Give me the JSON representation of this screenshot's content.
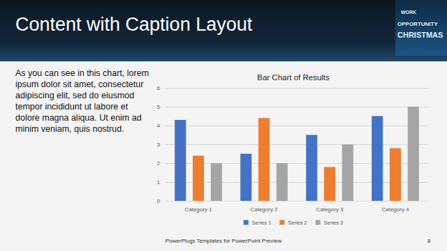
{
  "slide": {
    "title": "Content with Caption Layout",
    "caption_lines": [
      "As you can see in this chart, lorem",
      "ipsum dolor sit amet, consectetur",
      "adipiscing elit, sed do eiusmod",
      "tempor incididunt ut labore et",
      "dolore magna aliqua. Ut enim ad",
      "minim veniam, quis nostrud."
    ],
    "image_words": [
      "WORK",
      "OPPORTUNITY",
      "CHRISTMAS"
    ],
    "footer": "PowerPlugs Templates for PowerPoint Preview",
    "page_number": "8"
  },
  "chart_data": {
    "type": "bar",
    "title": "Bar Chart of Results",
    "categories": [
      "Category 1",
      "Category 2",
      "Category 3",
      "Category 4"
    ],
    "series": [
      {
        "name": "Series 1",
        "color": "#4472c4",
        "values": [
          4.3,
          2.5,
          3.5,
          4.5
        ]
      },
      {
        "name": "Series 2",
        "color": "#ed7d31",
        "values": [
          2.4,
          4.4,
          1.8,
          2.8
        ]
      },
      {
        "name": "Series 3",
        "color": "#a5a5a5",
        "values": [
          2.0,
          2.0,
          3.0,
          5.0
        ]
      }
    ],
    "ylim": [
      0,
      6
    ],
    "yticks": [
      0,
      1,
      2,
      3,
      4,
      5,
      6
    ],
    "grid": true,
    "legend": "bottom"
  }
}
